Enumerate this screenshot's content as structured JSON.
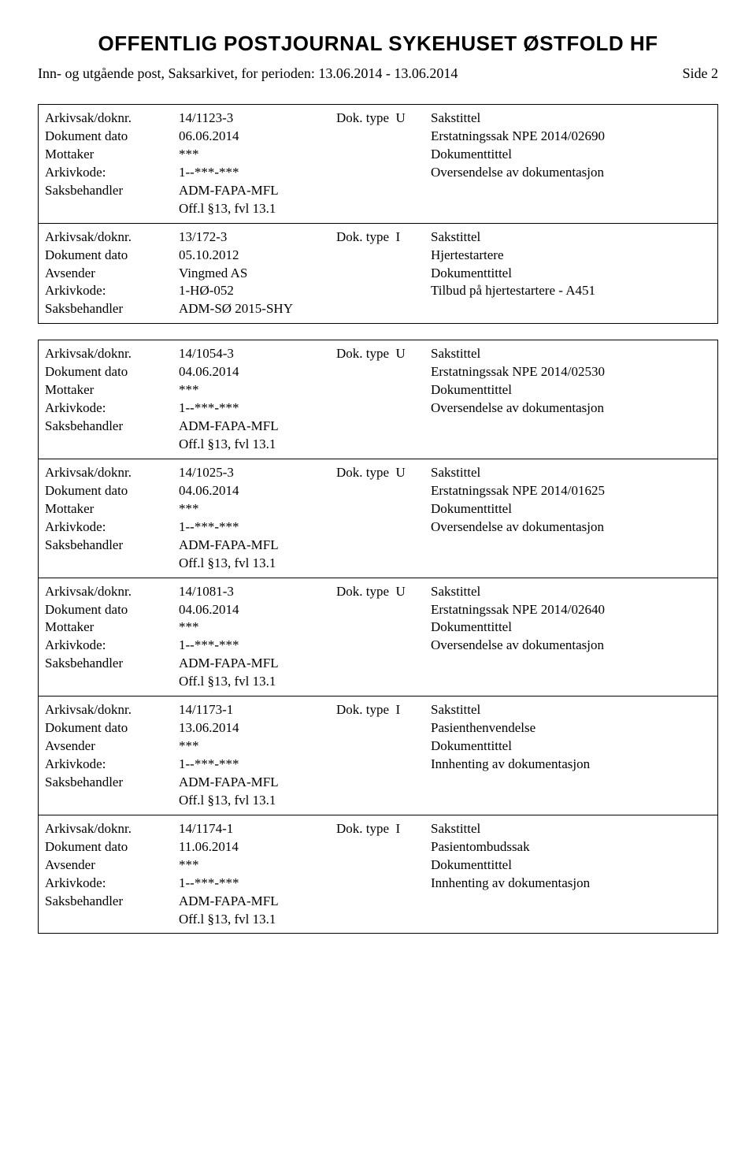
{
  "header": {
    "title": "OFFENTLIG POSTJOURNAL SYKEHUSET ØSTFOLD HF",
    "subtitle": "Inn- og utgående post, Saksarkivet, for perioden: 13.06.2014 - 13.06.2014",
    "page": "Side 2"
  },
  "labels": {
    "arkivsak": "Arkivsak/doknr.",
    "dokdato": "Dokument dato",
    "mottaker": "Mottaker",
    "avsender": "Avsender",
    "arkivkode": "Arkivkode:",
    "saksbehandler": "Saksbehandler",
    "doktype": "Dok. type",
    "sakstittel": "Sakstittel",
    "dokumenttittel": "Dokumenttittel"
  },
  "records": [
    {
      "saknr": "14/1123-3",
      "doktype": "U",
      "dato": "06.06.2014",
      "sakstittel_val": "Erstatningssak NPE 2014/02690",
      "party_label": "Mottaker",
      "party": "***",
      "arkivkode": "1--***-***",
      "doktittel": "Oversendelse av dokumentasjon",
      "saksbehandler": "ADM-FAPA-MFL",
      "extra": "Off.l §13, fvl 13.1"
    },
    {
      "saknr": "13/172-3",
      "doktype": "I",
      "dato": "05.10.2012",
      "sakstittel_val": "Hjertestartere",
      "party_label": "Avsender",
      "party": "Vingmed AS",
      "arkivkode": "1-HØ-052",
      "doktittel": "Tilbud på hjertestartere - A451",
      "saksbehandler": "ADM-SØ 2015-SHY",
      "extra": ""
    },
    {
      "saknr": "14/1054-3",
      "doktype": "U",
      "dato": "04.06.2014",
      "sakstittel_val": "Erstatningssak NPE 2014/02530",
      "party_label": "Mottaker",
      "party": "***",
      "arkivkode": "1--***-***",
      "doktittel": "Oversendelse av dokumentasjon",
      "saksbehandler": "ADM-FAPA-MFL",
      "extra": "Off.l §13, fvl 13.1"
    },
    {
      "saknr": "14/1025-3",
      "doktype": "U",
      "dato": "04.06.2014",
      "sakstittel_val": "Erstatningssak NPE 2014/01625",
      "party_label": "Mottaker",
      "party": "***",
      "arkivkode": "1--***-***",
      "doktittel": "Oversendelse av dokumentasjon",
      "saksbehandler": "ADM-FAPA-MFL",
      "extra": "Off.l §13, fvl 13.1"
    },
    {
      "saknr": "14/1081-3",
      "doktype": "U",
      "dato": "04.06.2014",
      "sakstittel_val": "Erstatningssak NPE 2014/02640",
      "party_label": "Mottaker",
      "party": "***",
      "arkivkode": "1--***-***",
      "doktittel": "Oversendelse av dokumentasjon",
      "saksbehandler": "ADM-FAPA-MFL",
      "extra": "Off.l §13, fvl 13.1"
    },
    {
      "saknr": "14/1173-1",
      "doktype": "I",
      "dato": "13.06.2014",
      "sakstittel_val": "Pasienthenvendelse",
      "party_label": "Avsender",
      "party": "***",
      "arkivkode": "1--***-***",
      "doktittel": "Innhenting av dokumentasjon",
      "saksbehandler": "ADM-FAPA-MFL",
      "extra": "Off.l §13, fvl 13.1"
    },
    {
      "saknr": "14/1174-1",
      "doktype": "I",
      "dato": "11.06.2014",
      "sakstittel_val": "Pasientombudssak",
      "party_label": "Avsender",
      "party": "***",
      "arkivkode": "1--***-***",
      "doktittel": "Innhenting av dokumentasjon",
      "saksbehandler": "ADM-FAPA-MFL",
      "extra": "Off.l §13, fvl 13.1"
    }
  ],
  "layout": {
    "group_breaks_after": [
      1
    ]
  }
}
